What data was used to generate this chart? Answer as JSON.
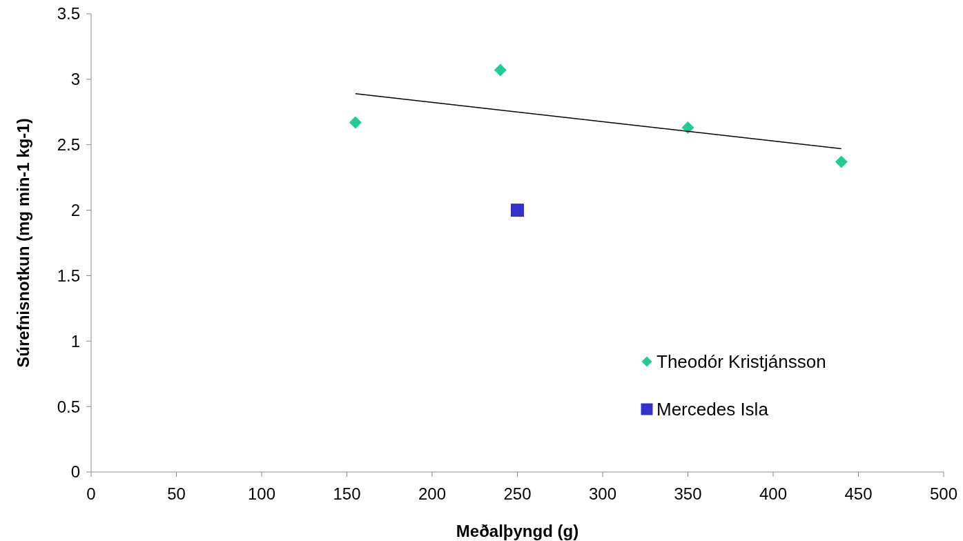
{
  "chart_data": {
    "type": "scatter",
    "xlabel": "Meðalþyngd (g)",
    "ylabel": "Súrefnisnotkun (mg min-1 kg-1)",
    "xlim": [
      0,
      500
    ],
    "xticks": [
      0,
      50,
      100,
      150,
      200,
      250,
      300,
      350,
      400,
      450,
      500
    ],
    "ylim": [
      0,
      3.5
    ],
    "yticks": [
      0,
      0.5,
      1,
      1.5,
      2,
      2.5,
      3,
      3.5
    ],
    "grid": false,
    "legend": "bottom right",
    "series": [
      {
        "name": "Theodór Kristjánsson",
        "color": "#1fcc96",
        "marker": "diamond",
        "x": [
          155,
          240,
          350,
          440
        ],
        "values": [
          2.67,
          3.07,
          2.63,
          2.37
        ]
      },
      {
        "name": "Mercedes Isla",
        "color": "#3333cc",
        "marker": "square",
        "x": [
          250
        ],
        "values": [
          2.0
        ]
      },
      {
        "type": "line",
        "color": "#000000",
        "x": [
          155,
          440
        ],
        "values": [
          2.89,
          2.47
        ]
      }
    ]
  }
}
